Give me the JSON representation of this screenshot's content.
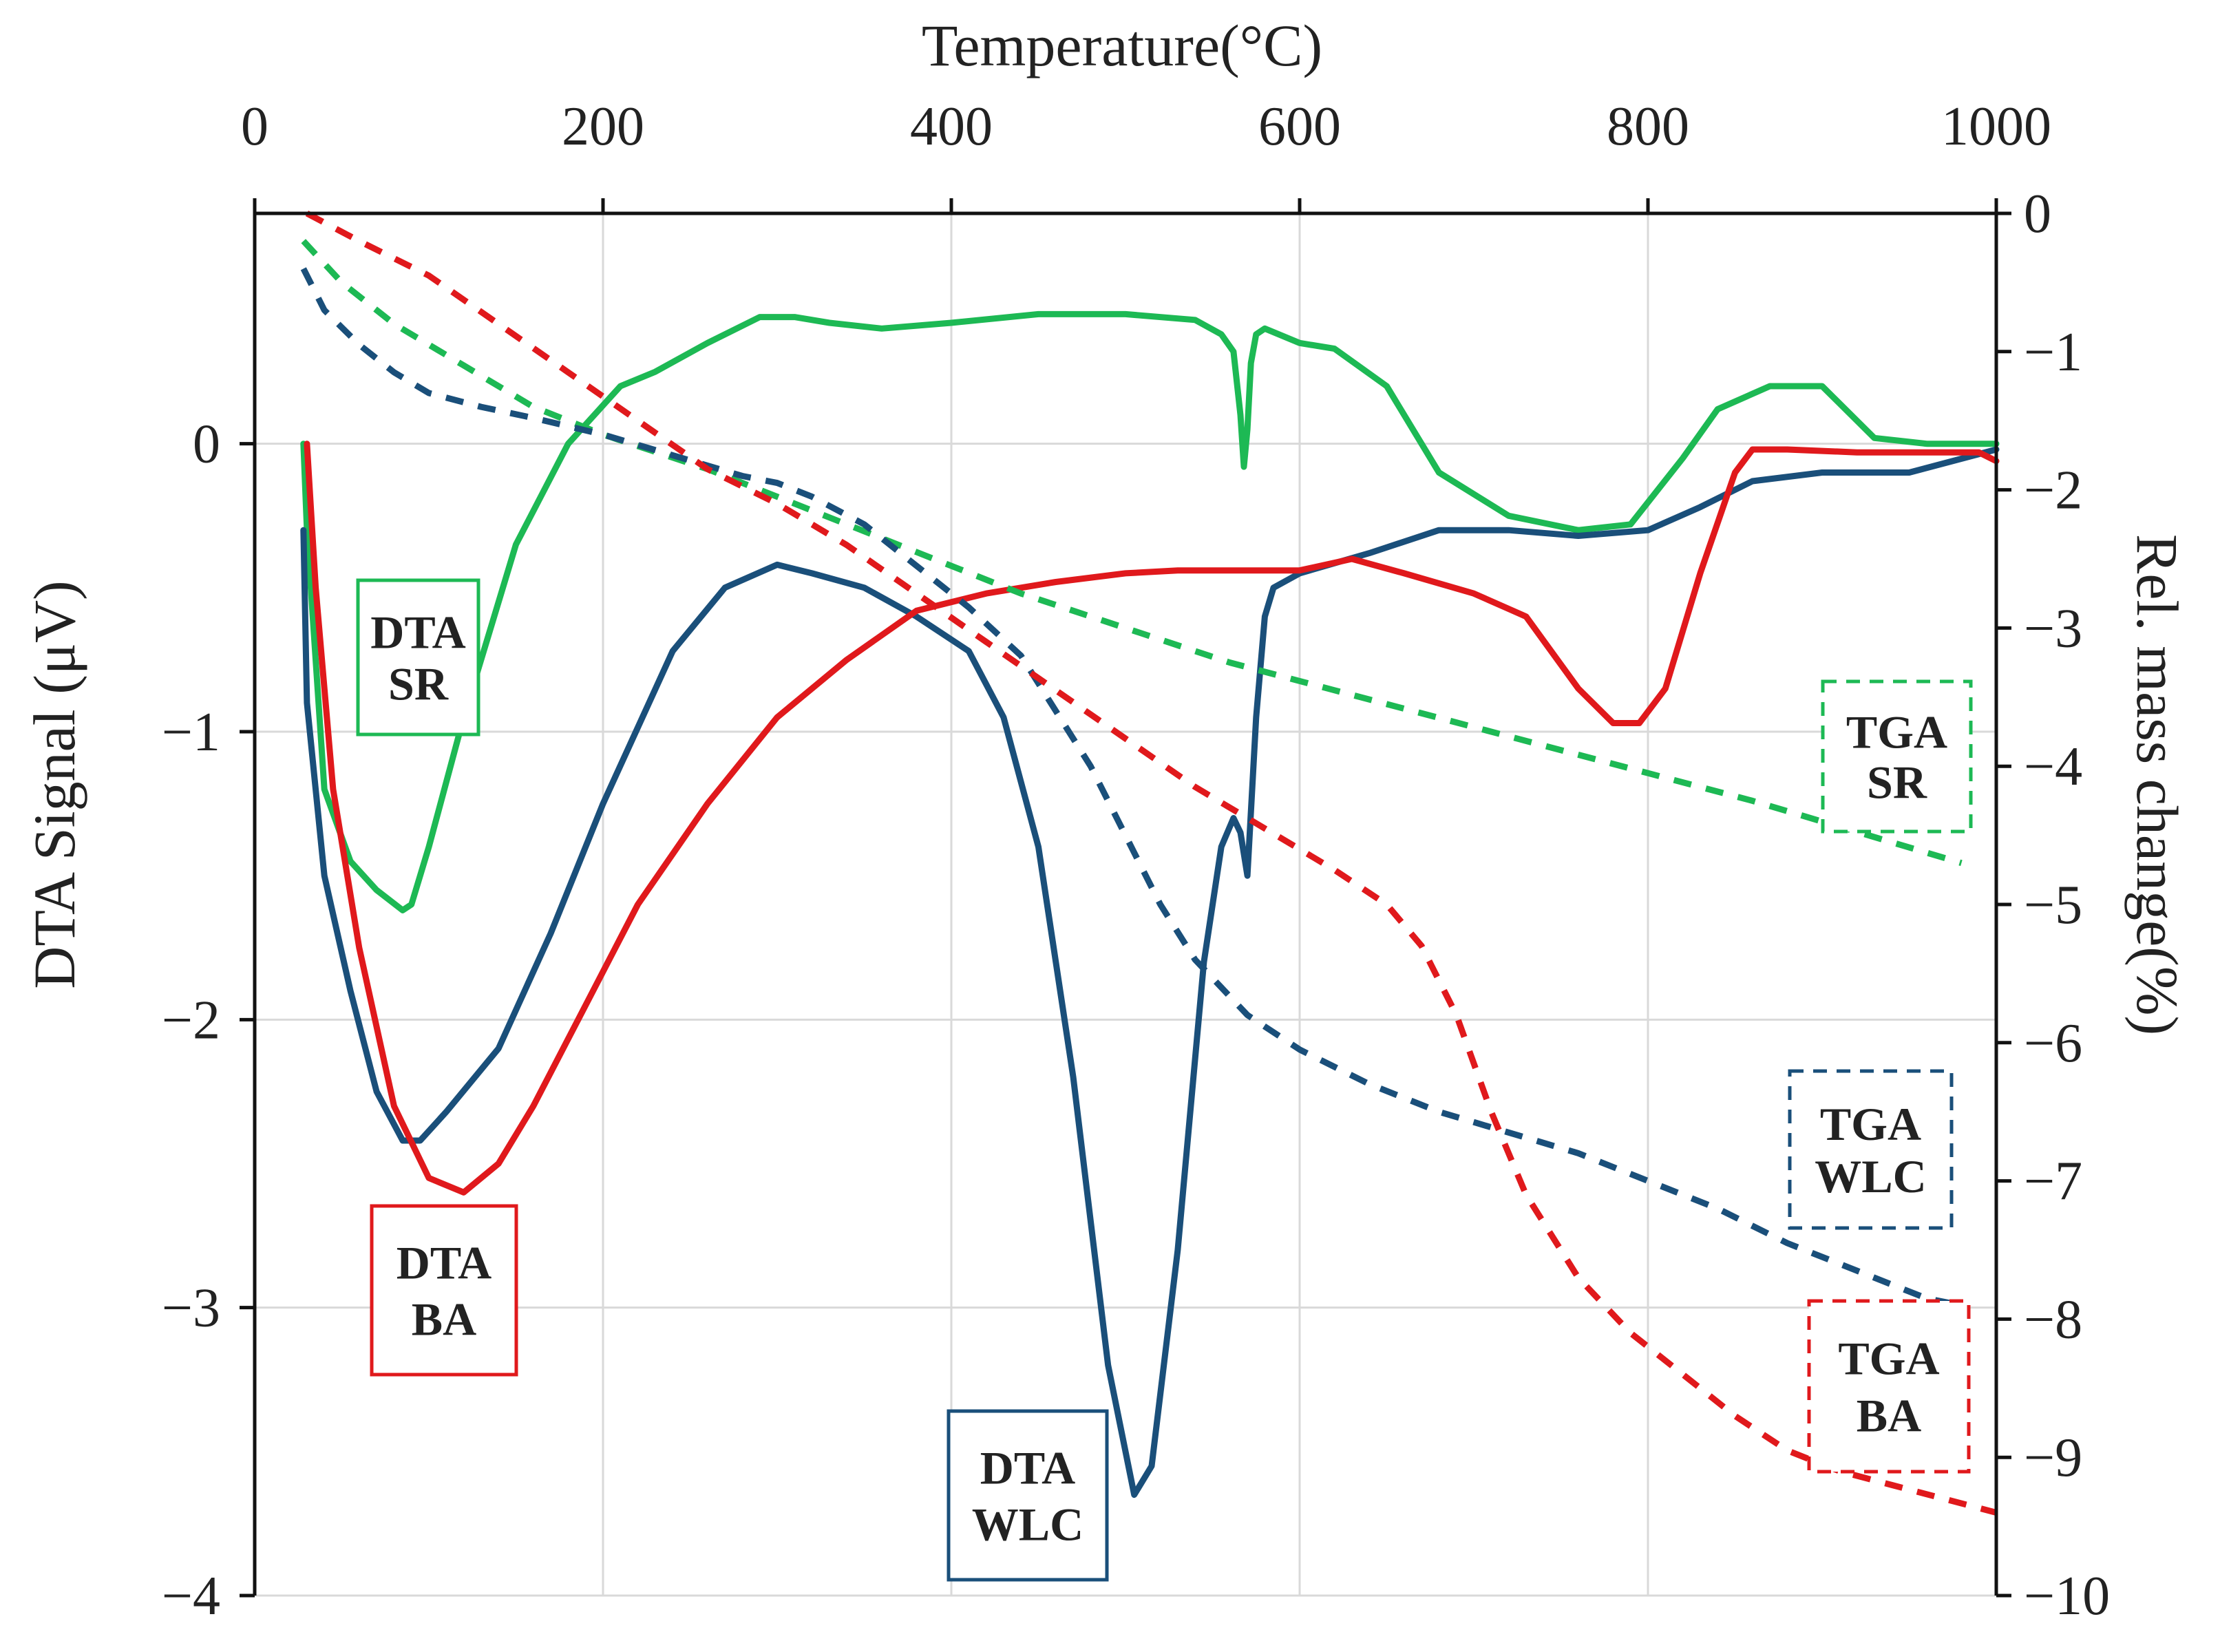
{
  "chart_data": {
    "type": "line",
    "xlabel": "Temperature(°C)",
    "ylabel_left": "DTA Signal (μV)",
    "ylabel_right": "Rel. mass change(%)",
    "xlim": [
      0,
      1000
    ],
    "ylim_left": [
      -4,
      0.8
    ],
    "ylim_right": [
      -10,
      0
    ],
    "x_ticks": [
      "0",
      "200",
      "400",
      "600",
      "800",
      "1000"
    ],
    "y_left_ticks": [
      "0",
      "−1",
      "−2",
      "−3",
      "−4"
    ],
    "y_right_ticks": [
      "0",
      "−1",
      "−2",
      "−3",
      "−4",
      "−5",
      "−6",
      "−7",
      "−8",
      "−9",
      "−10"
    ],
    "x_axis_position": "top",
    "grid": true,
    "colors": {
      "SR": "#1db954",
      "WLC": "#1a4f7a",
      "BA": "#e0191c"
    },
    "series": [
      {
        "id": "dta-sr",
        "axis": "left",
        "style": "solid",
        "group": "SR",
        "x": [
          28,
          30,
          40,
          55,
          70,
          85,
          90,
          100,
          120,
          150,
          180,
          210,
          230,
          260,
          290,
          310,
          330,
          360,
          400,
          450,
          500,
          540,
          555,
          562,
          566,
          568,
          570,
          572,
          575,
          580,
          600,
          620,
          650,
          680,
          720,
          760,
          790,
          820,
          840,
          870,
          900,
          930,
          960,
          1000
        ],
        "y": [
          0.0,
          -0.3,
          -1.2,
          -1.45,
          -1.55,
          -1.62,
          -1.6,
          -1.4,
          -0.95,
          -0.35,
          0.0,
          0.2,
          0.25,
          0.35,
          0.44,
          0.44,
          0.42,
          0.4,
          0.42,
          0.45,
          0.45,
          0.43,
          0.38,
          0.32,
          0.1,
          -0.08,
          0.05,
          0.28,
          0.38,
          0.4,
          0.35,
          0.33,
          0.2,
          -0.1,
          -0.25,
          -0.3,
          -0.28,
          -0.05,
          0.12,
          0.2,
          0.2,
          0.02,
          0.0,
          0.0
        ]
      },
      {
        "id": "dta-wlc",
        "axis": "left",
        "style": "solid",
        "group": "WLC",
        "x": [
          28,
          30,
          40,
          55,
          70,
          85,
          95,
          110,
          140,
          170,
          200,
          240,
          270,
          300,
          320,
          350,
          380,
          410,
          430,
          450,
          470,
          490,
          505,
          515,
          530,
          545,
          555,
          562,
          566,
          570,
          575,
          580,
          585,
          600,
          640,
          680,
          720,
          760,
          800,
          830,
          860,
          900,
          950,
          1000
        ],
        "y": [
          -0.3,
          -0.9,
          -1.5,
          -1.9,
          -2.25,
          -2.42,
          -2.42,
          -2.32,
          -2.1,
          -1.7,
          -1.25,
          -0.72,
          -0.5,
          -0.42,
          -0.45,
          -0.5,
          -0.6,
          -0.72,
          -0.95,
          -1.4,
          -2.2,
          -3.2,
          -3.65,
          -3.55,
          -2.8,
          -1.8,
          -1.4,
          -1.3,
          -1.35,
          -1.5,
          -0.95,
          -0.6,
          -0.5,
          -0.45,
          -0.38,
          -0.3,
          -0.3,
          -0.32,
          -0.3,
          -0.22,
          -0.13,
          -0.1,
          -0.1,
          -0.02
        ]
      },
      {
        "id": "dta-ba",
        "axis": "left",
        "style": "solid",
        "group": "BA",
        "x": [
          30,
          35,
          45,
          60,
          80,
          100,
          120,
          140,
          160,
          190,
          220,
          260,
          300,
          340,
          380,
          420,
          460,
          500,
          530,
          570,
          600,
          630,
          660,
          700,
          730,
          760,
          780,
          795,
          810,
          830,
          850,
          860,
          880,
          920,
          960,
          990,
          1000
        ],
        "y": [
          0.0,
          -0.5,
          -1.2,
          -1.75,
          -2.3,
          -2.55,
          -2.6,
          -2.5,
          -2.3,
          -1.95,
          -1.6,
          -1.25,
          -0.95,
          -0.75,
          -0.58,
          -0.52,
          -0.48,
          -0.45,
          -0.44,
          -0.44,
          -0.44,
          -0.4,
          -0.45,
          -0.52,
          -0.6,
          -0.85,
          -0.97,
          -0.97,
          -0.85,
          -0.45,
          -0.1,
          -0.02,
          -0.02,
          -0.03,
          -0.03,
          -0.03,
          -0.06
        ]
      },
      {
        "id": "tga-sr",
        "axis": "right",
        "style": "dashed",
        "group": "SR",
        "x": [
          28,
          50,
          80,
          120,
          160,
          200,
          260,
          320,
          380,
          440,
          500,
          560,
          620,
          680,
          740,
          800,
          860,
          900,
          940,
          980
        ],
        "y": [
          -0.2,
          -0.5,
          -0.8,
          -1.1,
          -1.4,
          -1.6,
          -1.85,
          -2.15,
          -2.45,
          -2.75,
          -3.0,
          -3.25,
          -3.45,
          -3.65,
          -3.85,
          -4.05,
          -4.25,
          -4.4,
          -4.55,
          -4.7
        ]
      },
      {
        "id": "tga-wlc",
        "axis": "right",
        "style": "dashed",
        "group": "WLC",
        "x": [
          28,
          40,
          60,
          80,
          100,
          130,
          160,
          200,
          240,
          280,
          300,
          320,
          350,
          380,
          410,
          440,
          460,
          480,
          500,
          520,
          540,
          570,
          600,
          640,
          680,
          720,
          760,
          800,
          840,
          880,
          920,
          960,
          980
        ],
        "y": [
          -0.4,
          -0.7,
          -0.95,
          -1.15,
          -1.3,
          -1.4,
          -1.48,
          -1.6,
          -1.75,
          -1.9,
          -1.95,
          -2.05,
          -2.25,
          -2.55,
          -2.85,
          -3.2,
          -3.6,
          -4.0,
          -4.5,
          -5.0,
          -5.4,
          -5.8,
          -6.05,
          -6.3,
          -6.5,
          -6.65,
          -6.8,
          -7.0,
          -7.2,
          -7.45,
          -7.65,
          -7.85,
          -7.9
        ]
      },
      {
        "id": "tga-ba",
        "axis": "right",
        "style": "dashed",
        "group": "BA",
        "x": [
          30,
          60,
          100,
          140,
          180,
          220,
          260,
          300,
          340,
          380,
          420,
          460,
          500,
          540,
          580,
          620,
          650,
          670,
          690,
          710,
          730,
          760,
          790,
          820,
          850,
          880,
          910,
          940,
          970,
          1000
        ],
        "y": [
          0.0,
          -0.2,
          -0.45,
          -0.8,
          -1.15,
          -1.5,
          -1.85,
          -2.1,
          -2.4,
          -2.75,
          -3.1,
          -3.45,
          -3.8,
          -4.15,
          -4.45,
          -4.75,
          -5.0,
          -5.3,
          -5.8,
          -6.5,
          -7.1,
          -7.7,
          -8.1,
          -8.4,
          -8.7,
          -8.95,
          -9.1,
          -9.2,
          -9.3,
          -9.4
        ]
      }
    ],
    "annotations": [
      {
        "id": "dta-sr",
        "lines": [
          "DTA",
          "SR"
        ],
        "border": "solid",
        "group": "SR"
      },
      {
        "id": "dta-ba",
        "lines": [
          "DTA",
          "BA"
        ],
        "border": "solid",
        "group": "BA"
      },
      {
        "id": "dta-wlc",
        "lines": [
          "DTA",
          "WLC"
        ],
        "border": "solid",
        "group": "WLC"
      },
      {
        "id": "tga-sr",
        "lines": [
          "TGA",
          "SR"
        ],
        "border": "dashed",
        "group": "SR"
      },
      {
        "id": "tga-wlc",
        "lines": [
          "TGA",
          "WLC"
        ],
        "border": "dashed",
        "group": "WLC"
      },
      {
        "id": "tga-ba",
        "lines": [
          "TGA",
          "BA"
        ],
        "border": "dashed",
        "group": "BA"
      }
    ]
  }
}
